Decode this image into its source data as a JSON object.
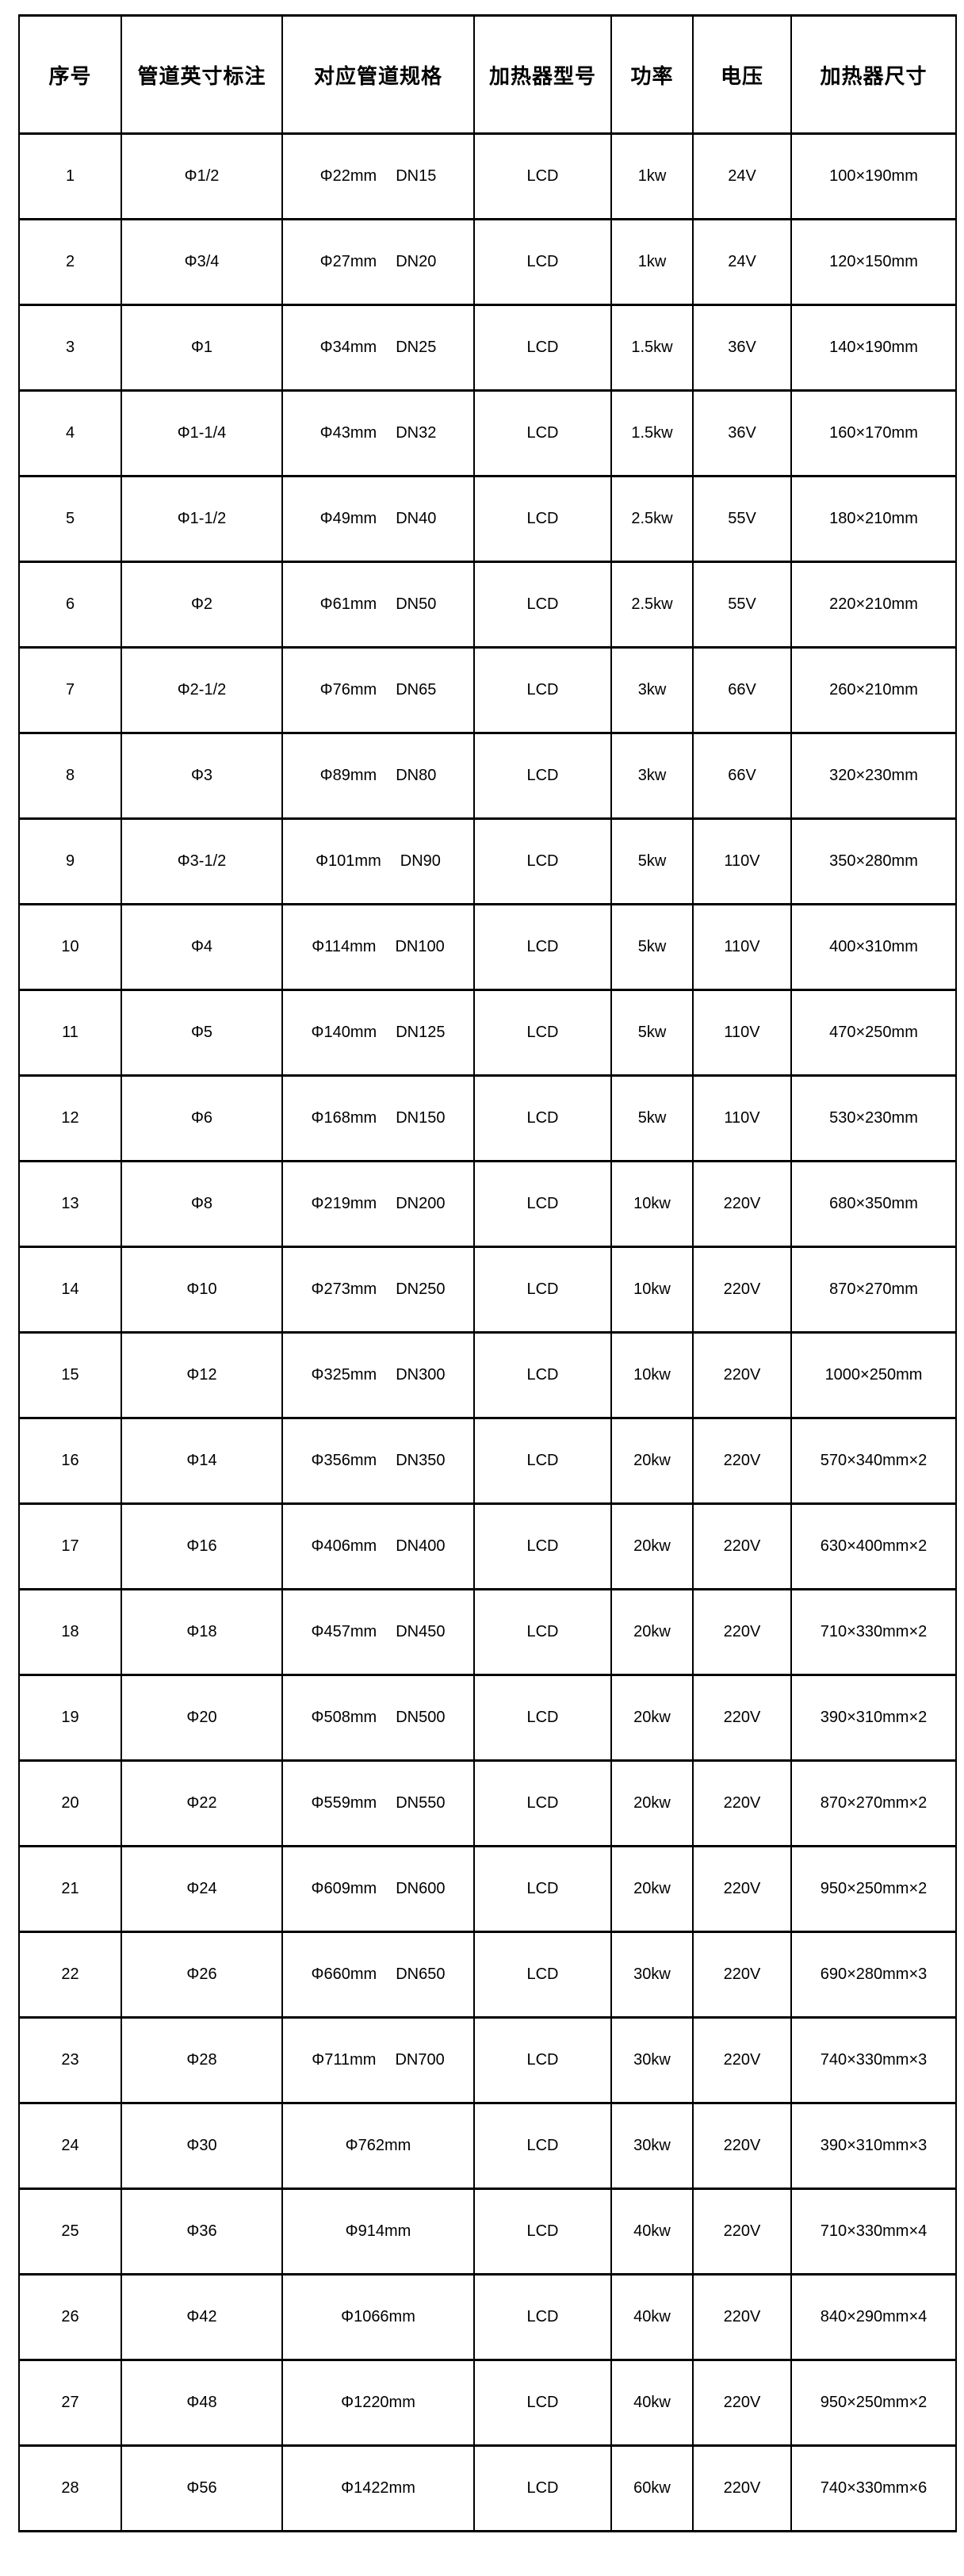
{
  "colors": {
    "border": "#000000",
    "background": "#ffffff",
    "text": "#000000"
  },
  "table": {
    "headers": [
      "序号",
      "管道英寸标注",
      "对应管道规格",
      "加热器型号",
      "功率",
      "电压",
      "加热器尺寸"
    ],
    "rows": [
      {
        "no": "1",
        "inch": "Φ1/2",
        "spec_mm": "Φ22mm",
        "spec_dn": "DN15",
        "model": "LCD",
        "power": "1kw",
        "voltage": "24V",
        "size": "100×190mm"
      },
      {
        "no": "2",
        "inch": "Φ3/4",
        "spec_mm": "Φ27mm",
        "spec_dn": "DN20",
        "model": "LCD",
        "power": "1kw",
        "voltage": "24V",
        "size": "120×150mm"
      },
      {
        "no": "3",
        "inch": "Φ1",
        "spec_mm": "Φ34mm",
        "spec_dn": "DN25",
        "model": "LCD",
        "power": "1.5kw",
        "voltage": "36V",
        "size": "140×190mm"
      },
      {
        "no": "4",
        "inch": "Φ1-1/4",
        "spec_mm": "Φ43mm",
        "spec_dn": "DN32",
        "model": "LCD",
        "power": "1.5kw",
        "voltage": "36V",
        "size": "160×170mm"
      },
      {
        "no": "5",
        "inch": "Φ1-1/2",
        "spec_mm": "Φ49mm",
        "spec_dn": "DN40",
        "model": "LCD",
        "power": "2.5kw",
        "voltage": "55V",
        "size": "180×210mm"
      },
      {
        "no": "6",
        "inch": "Φ2",
        "spec_mm": "Φ61mm",
        "spec_dn": "DN50",
        "model": "LCD",
        "power": "2.5kw",
        "voltage": "55V",
        "size": "220×210mm"
      },
      {
        "no": "7",
        "inch": "Φ2-1/2",
        "spec_mm": "Φ76mm",
        "spec_dn": "DN65",
        "model": "LCD",
        "power": "3kw",
        "voltage": "66V",
        "size": "260×210mm"
      },
      {
        "no": "8",
        "inch": "Φ3",
        "spec_mm": "Φ89mm",
        "spec_dn": "DN80",
        "model": "LCD",
        "power": "3kw",
        "voltage": "66V",
        "size": "320×230mm"
      },
      {
        "no": "9",
        "inch": "Φ3-1/2",
        "spec_mm": "Φ101mm",
        "spec_dn": "DN90",
        "model": "LCD",
        "power": "5kw",
        "voltage": "110V",
        "size": "350×280mm"
      },
      {
        "no": "10",
        "inch": "Φ4",
        "spec_mm": "Φ114mm",
        "spec_dn": "DN100",
        "model": "LCD",
        "power": "5kw",
        "voltage": "110V",
        "size": "400×310mm"
      },
      {
        "no": "11",
        "inch": "Φ5",
        "spec_mm": "Φ140mm",
        "spec_dn": "DN125",
        "model": "LCD",
        "power": "5kw",
        "voltage": "110V",
        "size": "470×250mm"
      },
      {
        "no": "12",
        "inch": "Φ6",
        "spec_mm": "Φ168mm",
        "spec_dn": "DN150",
        "model": "LCD",
        "power": "5kw",
        "voltage": "110V",
        "size": "530×230mm"
      },
      {
        "no": "13",
        "inch": "Φ8",
        "spec_mm": "Φ219mm",
        "spec_dn": "DN200",
        "model": "LCD",
        "power": "10kw",
        "voltage": "220V",
        "size": "680×350mm"
      },
      {
        "no": "14",
        "inch": "Φ10",
        "spec_mm": "Φ273mm",
        "spec_dn": "DN250",
        "model": "LCD",
        "power": "10kw",
        "voltage": "220V",
        "size": "870×270mm"
      },
      {
        "no": "15",
        "inch": "Φ12",
        "spec_mm": "Φ325mm",
        "spec_dn": "DN300",
        "model": "LCD",
        "power": "10kw",
        "voltage": "220V",
        "size": "1000×250mm"
      },
      {
        "no": "16",
        "inch": "Φ14",
        "spec_mm": "Φ356mm",
        "spec_dn": "DN350",
        "model": "LCD",
        "power": "20kw",
        "voltage": "220V",
        "size": "570×340mm×2"
      },
      {
        "no": "17",
        "inch": "Φ16",
        "spec_mm": "Φ406mm",
        "spec_dn": "DN400",
        "model": "LCD",
        "power": "20kw",
        "voltage": "220V",
        "size": "630×400mm×2"
      },
      {
        "no": "18",
        "inch": "Φ18",
        "spec_mm": "Φ457mm",
        "spec_dn": "DN450",
        "model": "LCD",
        "power": "20kw",
        "voltage": "220V",
        "size": "710×330mm×2"
      },
      {
        "no": "19",
        "inch": "Φ20",
        "spec_mm": "Φ508mm",
        "spec_dn": "DN500",
        "model": "LCD",
        "power": "20kw",
        "voltage": "220V",
        "size": "390×310mm×2"
      },
      {
        "no": "20",
        "inch": "Φ22",
        "spec_mm": "Φ559mm",
        "spec_dn": "DN550",
        "model": "LCD",
        "power": "20kw",
        "voltage": "220V",
        "size": "870×270mm×2"
      },
      {
        "no": "21",
        "inch": "Φ24",
        "spec_mm": "Φ609mm",
        "spec_dn": "DN600",
        "model": "LCD",
        "power": "20kw",
        "voltage": "220V",
        "size": "950×250mm×2"
      },
      {
        "no": "22",
        "inch": "Φ26",
        "spec_mm": "Φ660mm",
        "spec_dn": "DN650",
        "model": "LCD",
        "power": "30kw",
        "voltage": "220V",
        "size": "690×280mm×3"
      },
      {
        "no": "23",
        "inch": "Φ28",
        "spec_mm": "Φ711mm",
        "spec_dn": "DN700",
        "model": "LCD",
        "power": "30kw",
        "voltage": "220V",
        "size": "740×330mm×3"
      },
      {
        "no": "24",
        "inch": "Φ30",
        "spec_mm": "Φ762mm",
        "spec_dn": "",
        "model": "LCD",
        "power": "30kw",
        "voltage": "220V",
        "size": "390×310mm×3"
      },
      {
        "no": "25",
        "inch": "Φ36",
        "spec_mm": "Φ914mm",
        "spec_dn": "",
        "model": "LCD",
        "power": "40kw",
        "voltage": "220V",
        "size": "710×330mm×4"
      },
      {
        "no": "26",
        "inch": "Φ42",
        "spec_mm": "Φ1066mm",
        "spec_dn": "",
        "model": "LCD",
        "power": "40kw",
        "voltage": "220V",
        "size": "840×290mm×4"
      },
      {
        "no": "27",
        "inch": "Φ48",
        "spec_mm": "Φ1220mm",
        "spec_dn": "",
        "model": "LCD",
        "power": "40kw",
        "voltage": "220V",
        "size": "950×250mm×2"
      },
      {
        "no": "28",
        "inch": "Φ56",
        "spec_mm": "Φ1422mm",
        "spec_dn": "",
        "model": "LCD",
        "power": "60kw",
        "voltage": "220V",
        "size": "740×330mm×6"
      }
    ]
  }
}
